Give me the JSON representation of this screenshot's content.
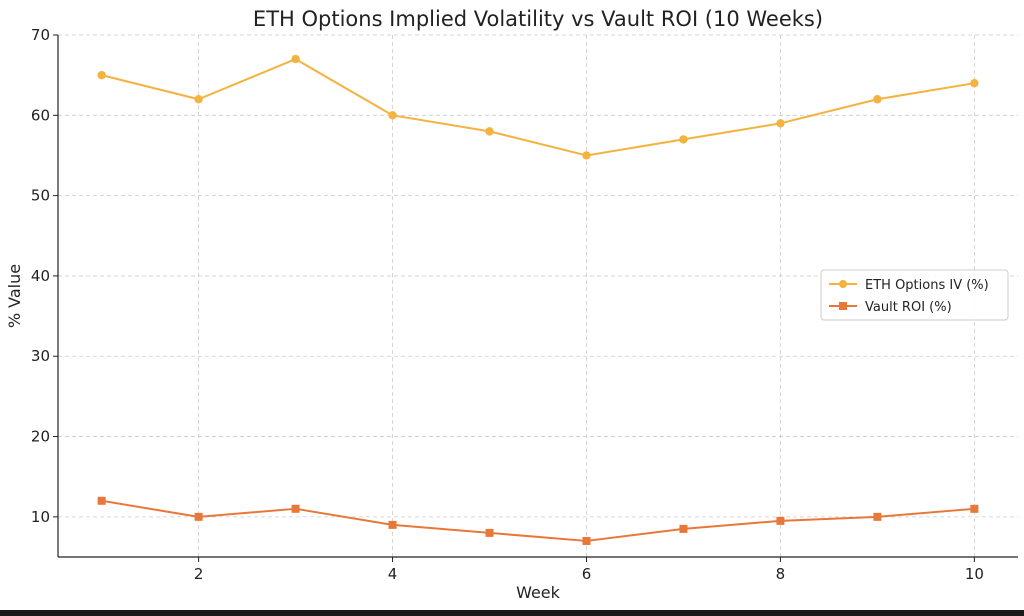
{
  "chart_data": {
    "type": "line",
    "title": "ETH Options Implied Volatility vs Vault ROI (10 Weeks)",
    "xlabel": "Week",
    "ylabel": "% Value",
    "x": [
      1,
      2,
      3,
      4,
      5,
      6,
      7,
      8,
      9,
      10
    ],
    "xticks": [
      2,
      4,
      6,
      8,
      10
    ],
    "yticks": [
      10,
      20,
      30,
      40,
      50,
      60,
      70
    ],
    "xlim": [
      0.55,
      10.45
    ],
    "ylim": [
      5.0,
      70.0
    ],
    "grid": true,
    "legend_position": "center-right",
    "series": [
      {
        "name": "ETH Options IV (%)",
        "values": [
          65,
          62,
          67,
          60,
          58,
          55,
          57,
          59,
          62,
          64
        ],
        "color": "#F4B23E",
        "marker": "circle"
      },
      {
        "name": "Vault ROI (%)",
        "values": [
          12,
          10,
          11,
          9,
          8,
          7,
          8.5,
          9.5,
          10,
          11
        ],
        "color": "#E8773A",
        "marker": "square"
      }
    ]
  }
}
